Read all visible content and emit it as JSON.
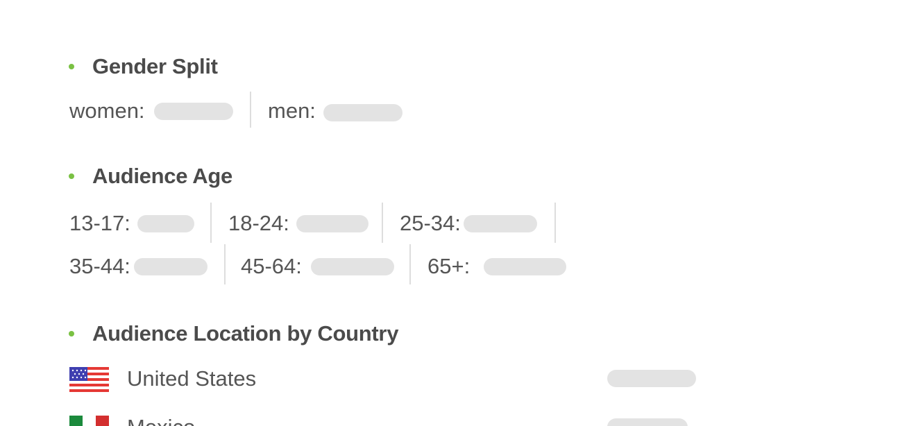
{
  "gender": {
    "title": "Gender Split",
    "women_label": "women:",
    "men_label": "men:"
  },
  "age": {
    "title": "Audience Age",
    "groups": [
      {
        "label": "13-17:"
      },
      {
        "label": "18-24:"
      },
      {
        "label": "25-34:"
      },
      {
        "label": "35-44:"
      },
      {
        "label": "45-64:"
      },
      {
        "label": "65+:"
      }
    ]
  },
  "location": {
    "title": "Audience Location by Country",
    "countries": [
      {
        "name": "United States",
        "flag": "us-flag-icon"
      },
      {
        "name": "Mexico",
        "flag": "mexico-flag-icon"
      }
    ]
  },
  "colors": {
    "bullet": "#7ac143",
    "placeholder": "#e3e3e3",
    "text": "#4b4b4b"
  }
}
